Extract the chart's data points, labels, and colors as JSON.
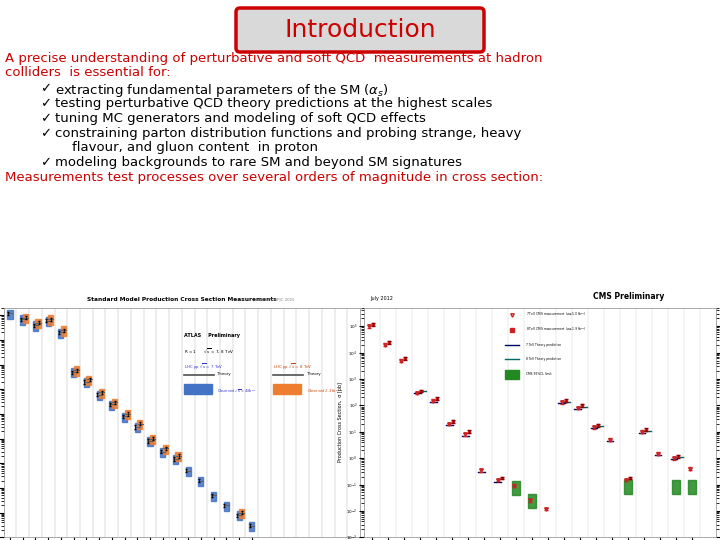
{
  "title": "Introduction",
  "title_color": "#cc0000",
  "title_bg": "#d9d9d9",
  "title_border_color": "#cc0000",
  "bg_color": "#ffffff",
  "intro_text_color": "#cc0000",
  "intro_line1": "A precise understanding of perturbative and soft QCD  measurements at hadron",
  "intro_line2": "colliders  is essential for:",
  "bullet_color": "#000000",
  "footer_text": "Measurements test processes over several orders of magnitude in cross section:",
  "footer_color": "#cc0000",
  "title_fontsize": 18,
  "intro_fontsize": 9.5,
  "bullet_fontsize": 9.5,
  "footer_fontsize": 9.5
}
